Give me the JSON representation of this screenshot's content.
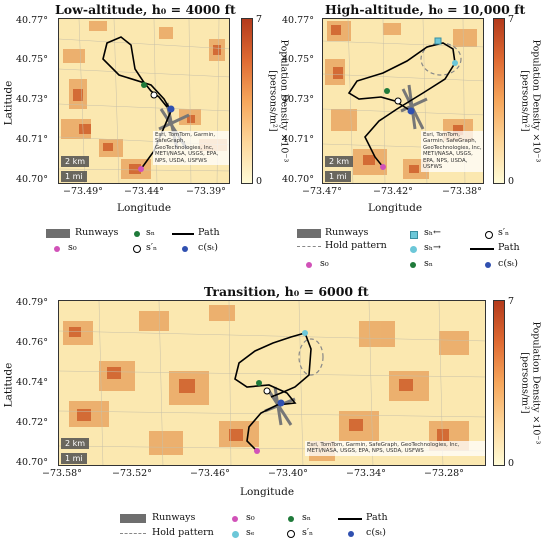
{
  "panels": [
    {
      "title": "Low-altitude, h₀ = 4000 ft",
      "ylabel": "Latitude",
      "xlabel": "Longitude",
      "yticks": [
        "40.77°",
        "40.75°",
        "40.73°",
        "40.71°",
        "40.70°"
      ],
      "xticks": [
        "−73.49°",
        "−73.44°",
        "−73.39°"
      ],
      "colorbar": {
        "label": "Population Density ×10⁻³",
        "units": "[persons/m²]",
        "max_label": "7",
        "min_label": "0"
      },
      "scale": {
        "km": "2 km",
        "mi": "1 mi"
      },
      "attribution": "Esri, TomTom, Garmin, SafeGraph, GeoTechnologies, Inc, METI/NASA, USGS, EPA, NPS, USDA, USFWS"
    },
    {
      "title": "High-altitude, h₀ = 10,000 ft",
      "ylabel": "",
      "xlabel": "Longitude",
      "yticks": [
        "40.77°",
        "40.75°",
        "40.73°",
        "40.71°",
        "40.70°"
      ],
      "xticks": [
        "−73.47°",
        "−73.42°",
        "−73.38°"
      ],
      "colorbar": {
        "label": "Population Density ×10⁻³",
        "units": "[persons/m²]",
        "max_label": "7",
        "min_label": "0"
      },
      "scale": {
        "km": "2 km",
        "mi": "1 mi"
      },
      "attribution": "Esri, TomTom, Garmin, SafeGraph, GeoTechnologies, Inc, METI/NASA, USGS, EPA, NPS, USDA, USFWS"
    },
    {
      "title": "Transition, h₀ = 6000 ft",
      "ylabel": "Latitude",
      "xlabel": "Longitude",
      "yticks": [
        "40.79°",
        "40.76°",
        "40.74°",
        "40.72°",
        "40.70°"
      ],
      "xticks": [
        "−73.58°",
        "−73.52°",
        "−73.46°",
        "−73.40°",
        "−73.34°",
        "−73.28°"
      ],
      "colorbar": {
        "label": "Population Density ×10⁻³",
        "units": "[persons/m²]",
        "max_label": "7",
        "min_label": "0"
      },
      "scale": {
        "km": "2 km",
        "mi": "1 mi"
      },
      "attribution": "Esri, TomTom, Garmin, SafeGraph, GeoTechnologies, Inc, METI/NASA, USGS, EPA, NPS, USDA, USFWS"
    }
  ],
  "legends": {
    "low": {
      "runways": "Runways",
      "s0": "s₀",
      "sN": "sₙ",
      "sN_prime": "s′ₙ",
      "path": "Path",
      "c_st": "c(sₜ)"
    },
    "high": {
      "runways": "Runways",
      "hold": "Hold pattern",
      "s0": "s₀",
      "sh_left": "sₕ←",
      "sh_right": "sₕ→",
      "sN": "sₙ",
      "sN_prime": "s′ₙ",
      "path": "Path",
      "c_st": "c(sₜ)"
    },
    "trans": {
      "runways": "Runways",
      "hold": "Hold pattern",
      "s0": "s₀",
      "se": "sₑ",
      "sN": "sₙ",
      "sN_prime": "s′ₙ",
      "path": "Path",
      "c_st": "c(sₜ)"
    }
  },
  "colors": {
    "s0": "#d152b8",
    "sN": "#1f7a3a",
    "c_st": "#3050b0",
    "sh": "#6cc7d8",
    "path": "#000000",
    "runway": "#7a7a7a",
    "density_low": "#fffbd6",
    "density_high": "#b33a1c"
  },
  "chart_data": [
    {
      "type": "heatmap",
      "title": "Low-altitude, h₀ = 4000 ft",
      "xlabel": "Longitude",
      "ylabel": "Latitude",
      "xlim": [
        -73.49,
        -73.39
      ],
      "ylim": [
        40.7,
        40.77
      ],
      "colorbar_range": [
        0,
        7
      ]
    },
    {
      "type": "heatmap",
      "title": "High-altitude, h₀ = 10,000 ft",
      "xlabel": "Longitude",
      "ylabel": "Latitude",
      "xlim": [
        -73.47,
        -73.38
      ],
      "ylim": [
        40.7,
        40.77
      ],
      "colorbar_range": [
        0,
        7
      ]
    },
    {
      "type": "heatmap",
      "title": "Transition, h₀ = 6000 ft",
      "xlabel": "Longitude",
      "ylabel": "Latitude",
      "xlim": [
        -73.58,
        -73.28
      ],
      "ylim": [
        40.7,
        40.79
      ],
      "colorbar_range": [
        0,
        7
      ]
    }
  ]
}
